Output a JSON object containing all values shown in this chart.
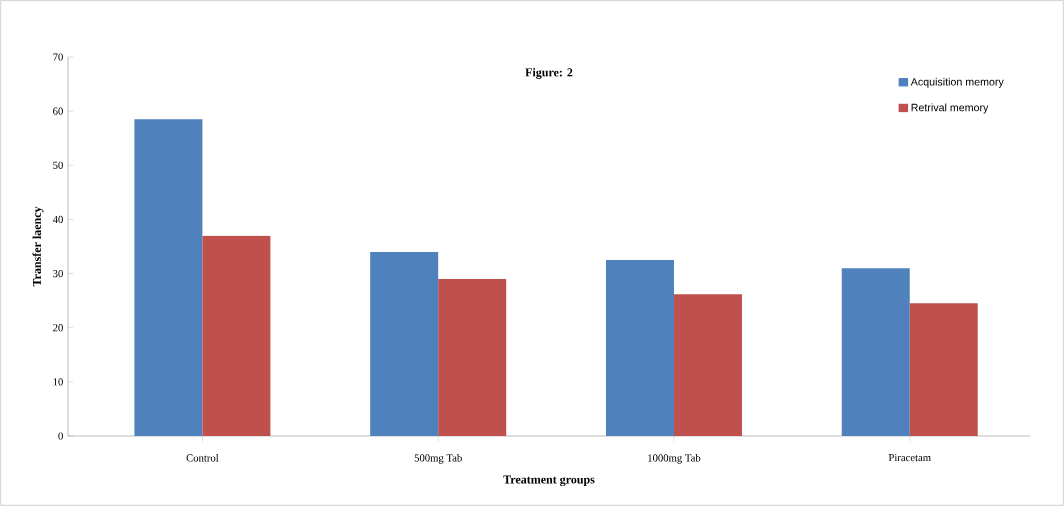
{
  "chart_data": {
    "type": "bar",
    "title": "Figure: 2",
    "xlabel": "Treatment groups",
    "ylabel": "Transfer laency",
    "categories": [
      "Control",
      "500mg Tab",
      "1000mg Tab",
      "Piracetam"
    ],
    "series": [
      {
        "name": "Acquisition memory",
        "color": "#4f81bd",
        "values": [
          58.5,
          34,
          32.5,
          31
        ]
      },
      {
        "name": "Retrival memory",
        "color": "#c0504d",
        "values": [
          37,
          29,
          26.2,
          24.5
        ]
      }
    ],
    "ylim": [
      0,
      70
    ],
    "yticks": [
      0,
      10,
      20,
      30,
      40,
      50,
      60,
      70
    ],
    "grid": false,
    "legend": "top right"
  }
}
